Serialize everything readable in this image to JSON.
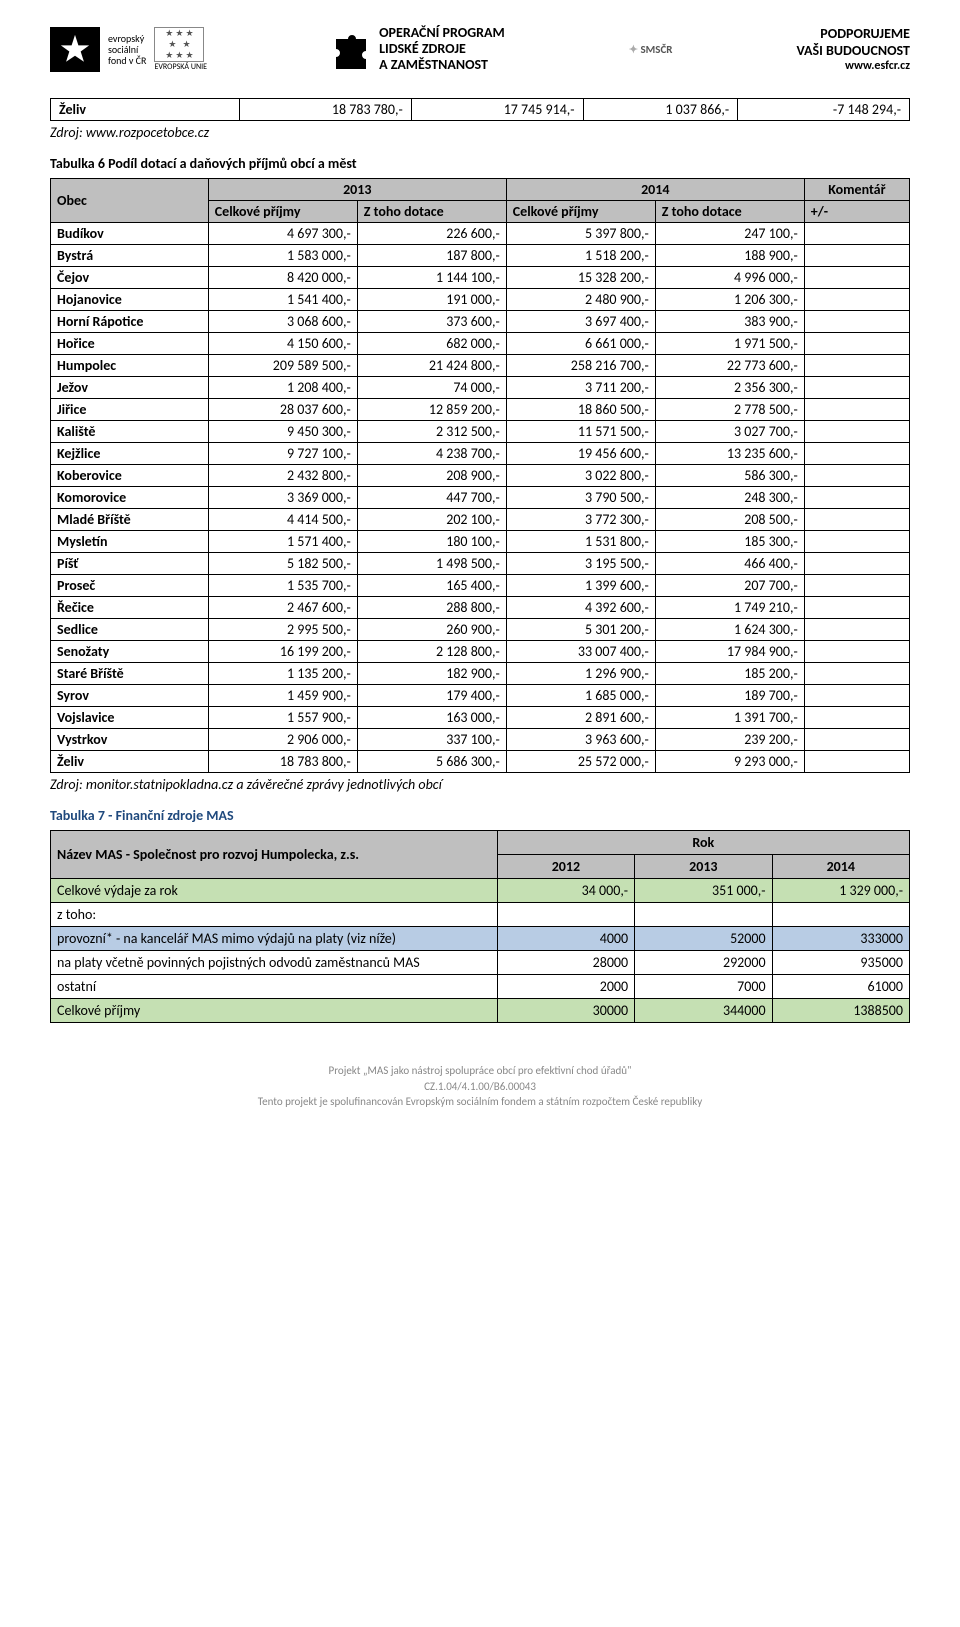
{
  "header": {
    "esf_label1": "evropský",
    "esf_label2": "sociální",
    "esf_label3": "fond v ČR",
    "eu_label": "EVROPSKÁ UNIE",
    "op_line1": "OPERAČNÍ PROGRAM",
    "op_line2": "LIDSKÉ ZDROJE",
    "op_line3": "A ZAMĚSTNANOST",
    "sms": "SMSČR",
    "podpora1": "PODPORUJEME",
    "podpora2": "VAŠI BUDOUCNOST",
    "podpora3": "www.esfcr.cz"
  },
  "table5_row": {
    "obec": "Želiv",
    "c1": "18 783 780,-",
    "c2": "17 745 914,-",
    "c3": "1 037 866,-",
    "c4": "-7 148 294,-"
  },
  "source5": "Zdroj: www.rozpocetobce.cz",
  "table6": {
    "caption": "Tabulka 6 Podíl dotací a daňových příjmů obcí a měst",
    "h_obec": "Obec",
    "h_2013": "2013",
    "h_2014": "2014",
    "h_komentar": "Komentář",
    "h_celkove": "Celkové příjmy",
    "h_ztoho": "Z toho dotace",
    "h_pm": "+/-",
    "rows": [
      {
        "obec": "Budíkov",
        "a": "4 697 300,-",
        "b": "226 600,-",
        "c": "5 397 800,-",
        "d": "247 100,-"
      },
      {
        "obec": "Bystrá",
        "a": "1 583 000,-",
        "b": "187 800,-",
        "c": "1 518 200,-",
        "d": "188 900,-"
      },
      {
        "obec": "Čejov",
        "a": "8 420 000,-",
        "b": "1 144 100,-",
        "c": "15 328 200,-",
        "d": "4 996 000,-"
      },
      {
        "obec": "Hojanovice",
        "a": "1 541 400,-",
        "b": "191 000,-",
        "c": "2 480 900,-",
        "d": "1 206 300,-"
      },
      {
        "obec": "Horní Rápotice",
        "a": "3 068 600,-",
        "b": "373 600,-",
        "c": "3 697 400,-",
        "d": "383 900,-"
      },
      {
        "obec": "Hořice",
        "a": "4 150 600,-",
        "b": "682 000,-",
        "c": "6 661 000,-",
        "d": "1 971 500,-"
      },
      {
        "obec": "Humpolec",
        "a": "209 589 500,-",
        "b": "21 424 800,-",
        "c": "258 216 700,-",
        "d": "22 773 600,-"
      },
      {
        "obec": "Ježov",
        "a": "1 208 400,-",
        "b": "74 000,-",
        "c": "3 711 200,-",
        "d": "2 356 300,-"
      },
      {
        "obec": "Jiřice",
        "a": "28 037 600,-",
        "b": "12 859 200,-",
        "c": "18 860 500,-",
        "d": "2 778 500,-"
      },
      {
        "obec": "Kaliště",
        "a": "9 450 300,-",
        "b": "2 312 500,-",
        "c": "11 571 500,-",
        "d": "3 027 700,-"
      },
      {
        "obec": "Kejžlice",
        "a": "9 727 100,-",
        "b": "4 238 700,-",
        "c": "19 456 600,-",
        "d": "13 235 600,-"
      },
      {
        "obec": "Koberovice",
        "a": "2 432 800,-",
        "b": "208 900,-",
        "c": "3 022 800,-",
        "d": "586 300,-"
      },
      {
        "obec": "Komorovice",
        "a": "3 369 000,-",
        "b": "447 700,-",
        "c": "3 790 500,-",
        "d": "248 300,-"
      },
      {
        "obec": "Mladé Bříště",
        "a": "4 414 500,-",
        "b": "202 100,-",
        "c": "3 772 300,-",
        "d": "208 500,-"
      },
      {
        "obec": "Mysletín",
        "a": "1 571 400,-",
        "b": "180 100,-",
        "c": "1 531 800,-",
        "d": "185 300,-"
      },
      {
        "obec": "Píšť",
        "a": "5 182 500,-",
        "b": "1 498 500,-",
        "c": "3 195 500,-",
        "d": "466 400,-"
      },
      {
        "obec": "Proseč",
        "a": "1 535 700,-",
        "b": "165 400,-",
        "c": "1 399 600,-",
        "d": "207 700,-"
      },
      {
        "obec": "Řečice",
        "a": "2 467 600,-",
        "b": "288 800,-",
        "c": "4 392 600,-",
        "d": "1 749 210,-"
      },
      {
        "obec": "Sedlice",
        "a": "2 995 500,-",
        "b": "260 900,-",
        "c": "5 301 200,-",
        "d": "1 624 300,-"
      },
      {
        "obec": "Senožaty",
        "a": "16 199 200,-",
        "b": "2 128 800,-",
        "c": "33 007 400,-",
        "d": "17 984 900,-"
      },
      {
        "obec": "Staré Bříště",
        "a": "1 135 200,-",
        "b": "182 900,-",
        "c": "1 296 900,-",
        "d": "185 200,-"
      },
      {
        "obec": "Syrov",
        "a": "1 459 900,-",
        "b": "179 400,-",
        "c": "1 685 000,-",
        "d": "189 700,-"
      },
      {
        "obec": "Vojslavice",
        "a": "1 557 900,-",
        "b": "163 000,-",
        "c": "2 891 600,-",
        "d": "1 391 700,-"
      },
      {
        "obec": "Vystrkov",
        "a": "2 906 000,-",
        "b": "337 100,-",
        "c": "3 963 600,-",
        "d": "239 200,-"
      },
      {
        "obec": "Želiv",
        "a": "18 783 800,-",
        "b": "5 686 300,-",
        "c": "25 572 000,-",
        "d": "9 293 000,-"
      }
    ],
    "source": "Zdroj: monitor.statnipokladna.cz a závěrečné zprávy jednotlivých obcí"
  },
  "table7": {
    "caption": "Tabulka 7 - Finanční zdroje MAS",
    "name_label": "Název MAS - Společnost pro rozvoj Humpolecka, z.s.",
    "h_rok": "Rok",
    "h_2012": "2012",
    "h_2013": "2013",
    "h_2014": "2014",
    "rows": [
      {
        "label": "Celkové výdaje za rok",
        "a": "34 000,-",
        "b": "351 000,-",
        "c": "1 329 000,-",
        "cls": "green"
      },
      {
        "label": "z toho:",
        "a": "",
        "b": "",
        "c": "",
        "cls": ""
      },
      {
        "label": "provozní* - na kancelář MAS mimo výdajů na platy (viz níže)",
        "a": "4000",
        "b": "52000",
        "c": "333000",
        "cls": "blue"
      },
      {
        "label": "na platy včetně povinných pojistných odvodů zaměstnanců MAS",
        "a": "28000",
        "b": "292000",
        "c": "935000",
        "cls": ""
      },
      {
        "label": "ostatní",
        "a": "2000",
        "b": "7000",
        "c": "61000",
        "cls": ""
      },
      {
        "label": "Celkové příjmy",
        "a": "30000",
        "b": "344000",
        "c": "1388500",
        "cls": "green"
      }
    ]
  },
  "footer": {
    "l1": "Projekt „MAS jako nástroj spolupráce obcí pro efektivní chod úřadů\"",
    "l2": "CZ.1.04/4.1.00/B6.00043",
    "l3": "Tento projekt je spolufinancován Evropským sociálním fondem a státním rozpočtem České republiky"
  }
}
